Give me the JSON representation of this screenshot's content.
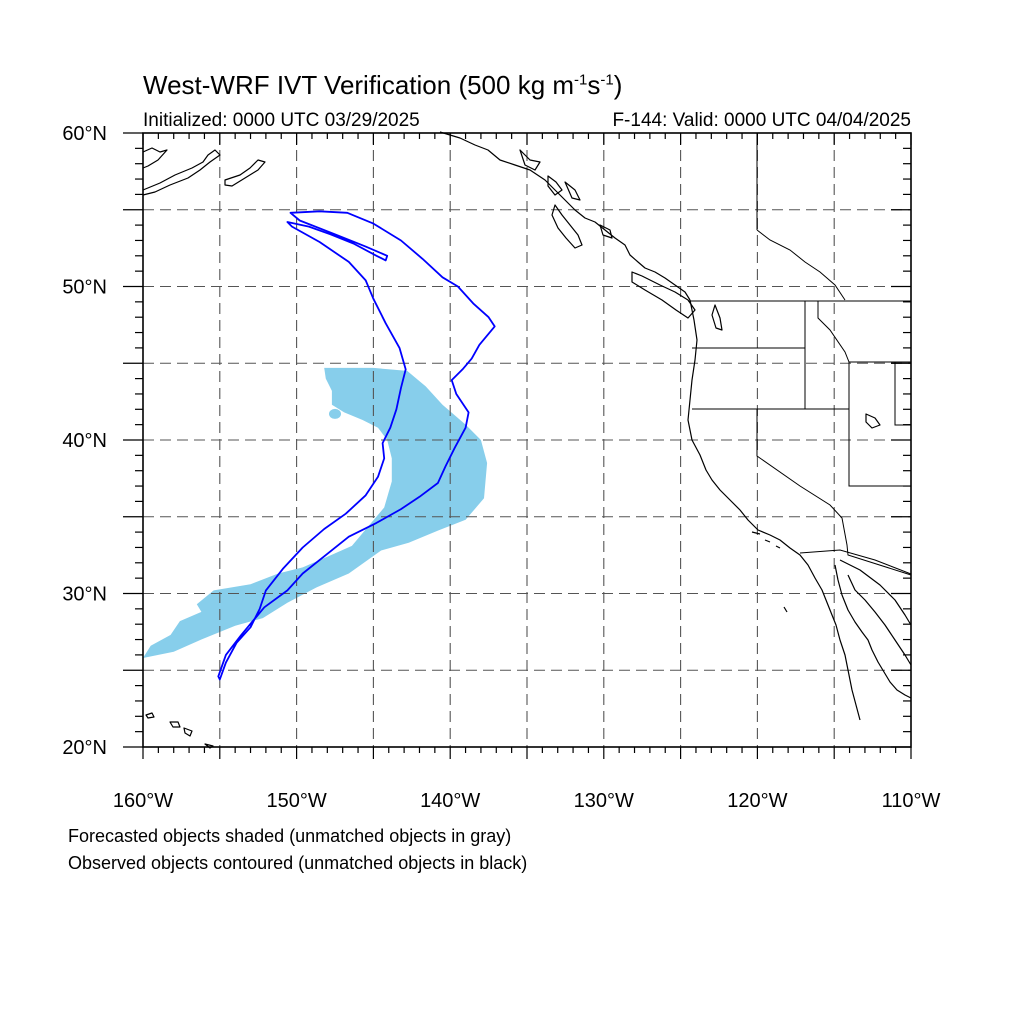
{
  "title": {
    "prefix": "West-WRF IVT Verification (500 kg m",
    "sup1": "-1",
    "middle": "s",
    "sup2": "-1",
    "suffix": ")"
  },
  "initialized": "Initialized: 0000 UTC 03/29/2025",
  "valid": "F-144: Valid: 0000 UTC 04/04/2025",
  "axes": {
    "lon_range": [
      -160,
      -110
    ],
    "lat_range": [
      20,
      60
    ],
    "lon_ticks": [
      "160°W",
      "150°W",
      "140°W",
      "130°W",
      "120°W",
      "110°W"
    ],
    "lat_ticks": [
      "60°N",
      "50°N",
      "40°N",
      "30°N",
      "20°N"
    ],
    "grid_interval_deg": 5,
    "grid": true
  },
  "colors": {
    "forecast_fill": "#87ceeb",
    "observed_contour": "#0000ff",
    "coastline": "#000000",
    "grid": "#555555"
  },
  "legend_notes": [
    "Forecasted objects shaded (unmatched objects in gray)",
    "Observed objects contoured (unmatched objects in black)"
  ],
  "chart_data": {
    "type": "map",
    "forecast_object": {
      "matched": true,
      "approx_extent": {
        "lon": [
          -160,
          -137.5
        ],
        "lat": [
          26,
          44.8
        ]
      },
      "outline_lonlat": [
        [
          -148.2,
          44.7
        ],
        [
          -145,
          44.7
        ],
        [
          -142.8,
          44.5
        ],
        [
          -141.6,
          43.5
        ],
        [
          -140.5,
          42.3
        ],
        [
          -139,
          41
        ],
        [
          -138,
          40
        ],
        [
          -137.6,
          38.5
        ],
        [
          -137.8,
          36.2
        ],
        [
          -139,
          34.8
        ],
        [
          -140.8,
          34.1
        ],
        [
          -142.7,
          33.3
        ],
        [
          -144.5,
          32.8
        ],
        [
          -146.6,
          31.3
        ],
        [
          -148.7,
          30.4
        ],
        [
          -150.6,
          29.4
        ],
        [
          -152.2,
          28.4
        ],
        [
          -154,
          27.9
        ],
        [
          -156.2,
          27
        ],
        [
          -158,
          26.2
        ],
        [
          -160,
          25.8
        ],
        [
          -159.5,
          26.6
        ],
        [
          -158.2,
          27.3
        ],
        [
          -157.6,
          28.2
        ],
        [
          -156.2,
          28.8
        ],
        [
          -156.5,
          29.3
        ],
        [
          -155.4,
          30.2
        ],
        [
          -153,
          30.6
        ],
        [
          -151.2,
          31.3
        ],
        [
          -149.6,
          31.7
        ],
        [
          -148,
          32.4
        ],
        [
          -146.4,
          33.1
        ],
        [
          -145.4,
          34.3
        ],
        [
          -144.3,
          35.6
        ],
        [
          -143.8,
          37.3
        ],
        [
          -143.8,
          38.8
        ],
        [
          -144.1,
          40
        ],
        [
          -144.7,
          40.8
        ],
        [
          -145.7,
          41.3
        ],
        [
          -146.9,
          41.8
        ],
        [
          -147.7,
          42.3
        ],
        [
          -147.7,
          43.2
        ],
        [
          -148.1,
          44
        ]
      ]
    },
    "observed_object": {
      "matched": true,
      "approx_extent": {
        "lon": [
          -155.1,
          -136.8
        ],
        "lat": [
          24.4,
          54.9
        ]
      },
      "outline_lonlat": [
        [
          -155,
          24.4
        ],
        [
          -154.6,
          25.5
        ],
        [
          -153.9,
          26.8
        ],
        [
          -153,
          27.8
        ],
        [
          -152.4,
          29
        ],
        [
          -152,
          30.2
        ],
        [
          -150.9,
          31.6
        ],
        [
          -149.6,
          33
        ],
        [
          -148.2,
          34.2
        ],
        [
          -146.8,
          35.2
        ],
        [
          -145.5,
          36.4
        ],
        [
          -144.7,
          37.6
        ],
        [
          -144.3,
          38.8
        ],
        [
          -144.4,
          39.8
        ],
        [
          -143.9,
          40.8
        ],
        [
          -143.5,
          42
        ],
        [
          -143.2,
          43.4
        ],
        [
          -142.9,
          44.6
        ],
        [
          -143.3,
          46
        ],
        [
          -144.2,
          47.6
        ],
        [
          -145,
          49.2
        ],
        [
          -145.5,
          50.4
        ],
        [
          -146.6,
          51.6
        ],
        [
          -148.5,
          52.9
        ],
        [
          -150.3,
          53.9
        ],
        [
          -150.6,
          54.2
        ],
        [
          -149.2,
          53.9
        ],
        [
          -147.8,
          53.4
        ],
        [
          -146.3,
          52.8
        ],
        [
          -144.8,
          52
        ],
        [
          -144.2,
          51.7
        ],
        [
          -144.1,
          52
        ],
        [
          -145.5,
          52.6
        ],
        [
          -147.5,
          53.4
        ],
        [
          -149.8,
          54.3
        ],
        [
          -150.4,
          54.8
        ],
        [
          -148.5,
          54.9
        ],
        [
          -146.7,
          54.8
        ],
        [
          -145,
          54.1
        ],
        [
          -143.2,
          53
        ],
        [
          -141.8,
          51.8
        ],
        [
          -140.5,
          50.6
        ],
        [
          -139.5,
          50
        ],
        [
          -138.5,
          48.9
        ],
        [
          -137.5,
          48
        ],
        [
          -137.1,
          47.4
        ],
        [
          -137.6,
          46.8
        ],
        [
          -138.1,
          46.2
        ],
        [
          -138.6,
          45.3
        ],
        [
          -139.2,
          44.6
        ],
        [
          -139.9,
          43.9
        ],
        [
          -139.6,
          43
        ],
        [
          -138.8,
          41.8
        ],
        [
          -139,
          40.8
        ],
        [
          -139.7,
          39.5
        ],
        [
          -140.3,
          38.3
        ],
        [
          -140.8,
          37.2
        ],
        [
          -142,
          36.3
        ],
        [
          -143.2,
          35.5
        ],
        [
          -144.8,
          34.6
        ],
        [
          -146.6,
          33.7
        ],
        [
          -148.1,
          32.5
        ],
        [
          -149.6,
          31.3
        ],
        [
          -150.6,
          30.2
        ],
        [
          -152.1,
          29.1
        ],
        [
          -153.6,
          27.3
        ],
        [
          -154.6,
          26
        ],
        [
          -155.1,
          24.6
        ]
      ]
    },
    "regions_shown": [
      "North Pacific Ocean",
      "Alaska",
      "Western Canada",
      "Western United States",
      "Baja California",
      "Hawaii"
    ]
  }
}
